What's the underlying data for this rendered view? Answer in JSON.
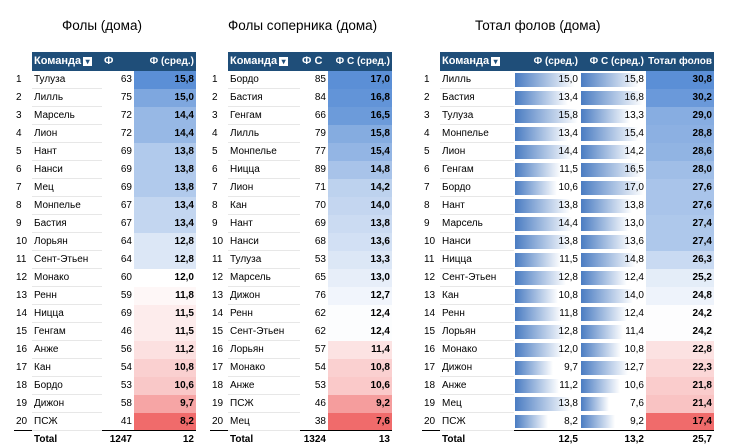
{
  "tables": [
    {
      "title": "Фолы (дома)",
      "headers": [
        "Команда",
        "Ф",
        "Ф (сред.)"
      ],
      "rows": [
        [
          "1",
          "Тулуза",
          "63",
          "15,8"
        ],
        [
          "2",
          "Лилль",
          "75",
          "15,0"
        ],
        [
          "3",
          "Марсель",
          "72",
          "14,4"
        ],
        [
          "4",
          "Лион",
          "72",
          "14,4"
        ],
        [
          "5",
          "Нант",
          "69",
          "13,8"
        ],
        [
          "6",
          "Нанси",
          "69",
          "13,8"
        ],
        [
          "7",
          "Мец",
          "69",
          "13,8"
        ],
        [
          "8",
          "Монпелье",
          "67",
          "13,4"
        ],
        [
          "9",
          "Бастия",
          "67",
          "13,4"
        ],
        [
          "10",
          "Лорьян",
          "64",
          "12,8"
        ],
        [
          "11",
          "Сент-Этьен",
          "64",
          "12,8"
        ],
        [
          "12",
          "Монако",
          "60",
          "12,0"
        ],
        [
          "13",
          "Ренн",
          "59",
          "11,8"
        ],
        [
          "14",
          "Ницца",
          "69",
          "11,5"
        ],
        [
          "15",
          "Генгам",
          "46",
          "11,5"
        ],
        [
          "16",
          "Анже",
          "56",
          "11,2"
        ],
        [
          "17",
          "Кан",
          "54",
          "10,8"
        ],
        [
          "18",
          "Бордо",
          "53",
          "10,6"
        ],
        [
          "19",
          "Дижон",
          "58",
          "9,7"
        ],
        [
          "20",
          "ПСЖ",
          "41",
          "8,2"
        ]
      ],
      "total": [
        "Total",
        "1247",
        "12"
      ],
      "heat_values": [
        15.8,
        15.0,
        14.4,
        14.4,
        13.8,
        13.8,
        13.8,
        13.4,
        13.4,
        12.8,
        12.8,
        12.0,
        11.8,
        11.5,
        11.5,
        11.2,
        10.8,
        10.6,
        9.7,
        8.2
      ]
    },
    {
      "title": "Фолы соперника (дома)",
      "headers": [
        "Команда",
        "Ф С",
        "Ф С (сред.)"
      ],
      "rows": [
        [
          "1",
          "Бордо",
          "85",
          "17,0"
        ],
        [
          "2",
          "Бастия",
          "84",
          "16,8"
        ],
        [
          "3",
          "Генгам",
          "66",
          "16,5"
        ],
        [
          "4",
          "Лилль",
          "79",
          "15,8"
        ],
        [
          "5",
          "Монпелье",
          "77",
          "15,4"
        ],
        [
          "6",
          "Ницца",
          "89",
          "14,8"
        ],
        [
          "7",
          "Лион",
          "71",
          "14,2"
        ],
        [
          "8",
          "Кан",
          "70",
          "14,0"
        ],
        [
          "9",
          "Нант",
          "69",
          "13,8"
        ],
        [
          "10",
          "Нанси",
          "68",
          "13,6"
        ],
        [
          "11",
          "Тулуза",
          "53",
          "13,3"
        ],
        [
          "12",
          "Марсель",
          "65",
          "13,0"
        ],
        [
          "13",
          "Дижон",
          "76",
          "12,7"
        ],
        [
          "14",
          "Ренн",
          "62",
          "12,4"
        ],
        [
          "15",
          "Сент-Этьен",
          "62",
          "12,4"
        ],
        [
          "16",
          "Лорьян",
          "57",
          "11,4"
        ],
        [
          "17",
          "Монако",
          "54",
          "10,8"
        ],
        [
          "18",
          "Анже",
          "53",
          "10,6"
        ],
        [
          "19",
          "ПСЖ",
          "46",
          "9,2"
        ],
        [
          "20",
          "Мец",
          "38",
          "7,6"
        ]
      ],
      "total": [
        "Total",
        "1324",
        "13"
      ],
      "heat_values": [
        17.0,
        16.8,
        16.5,
        15.8,
        15.4,
        14.8,
        14.2,
        14.0,
        13.8,
        13.6,
        13.3,
        13.0,
        12.7,
        12.4,
        12.4,
        11.4,
        10.8,
        10.6,
        9.2,
        7.6
      ]
    },
    {
      "title": "Тотал фолов (дома)",
      "headers": [
        "Команда",
        "Ф (сред.)",
        "Ф С (сред.)",
        "Тотал фолов"
      ],
      "rows": [
        [
          "1",
          "Лилль",
          "15,0",
          "15,8",
          "30,8"
        ],
        [
          "2",
          "Бастия",
          "13,4",
          "16,8",
          "30,2"
        ],
        [
          "3",
          "Тулуза",
          "15,8",
          "13,3",
          "29,0"
        ],
        [
          "4",
          "Монпелье",
          "13,4",
          "15,4",
          "28,8"
        ],
        [
          "5",
          "Лион",
          "14,4",
          "14,2",
          "28,6"
        ],
        [
          "6",
          "Генгам",
          "11,5",
          "16,5",
          "28,0"
        ],
        [
          "7",
          "Бордо",
          "10,6",
          "17,0",
          "27,6"
        ],
        [
          "8",
          "Нант",
          "13,8",
          "13,8",
          "27,6"
        ],
        [
          "9",
          "Марсель",
          "14,4",
          "13,0",
          "27,4"
        ],
        [
          "10",
          "Нанси",
          "13,8",
          "13,6",
          "27,4"
        ],
        [
          "11",
          "Ницца",
          "11,5",
          "14,8",
          "26,3"
        ],
        [
          "12",
          "Сент-Этьен",
          "12,8",
          "12,4",
          "25,2"
        ],
        [
          "13",
          "Кан",
          "10,8",
          "14,0",
          "24,8"
        ],
        [
          "14",
          "Ренн",
          "11,8",
          "12,4",
          "24,2"
        ],
        [
          "15",
          "Лорьян",
          "12,8",
          "11,4",
          "24,2"
        ],
        [
          "16",
          "Монако",
          "12,0",
          "10,8",
          "22,8"
        ],
        [
          "17",
          "Дижон",
          "9,7",
          "12,7",
          "22,3"
        ],
        [
          "18",
          "Анже",
          "11,2",
          "10,6",
          "21,8"
        ],
        [
          "19",
          "Мец",
          "13,8",
          "7,6",
          "21,4"
        ],
        [
          "20",
          "ПСЖ",
          "8,2",
          "9,2",
          "17,4"
        ]
      ],
      "total": [
        "Total",
        "12,5",
        "13,2",
        "25,7"
      ],
      "bar_values_a": [
        15.0,
        13.4,
        15.8,
        13.4,
        14.4,
        11.5,
        10.6,
        13.8,
        14.4,
        13.8,
        11.5,
        12.8,
        10.8,
        11.8,
        12.8,
        12.0,
        9.7,
        11.2,
        13.8,
        8.2
      ],
      "bar_values_b": [
        15.8,
        16.8,
        13.3,
        15.4,
        14.2,
        16.5,
        17.0,
        13.8,
        13.0,
        13.6,
        14.8,
        12.4,
        14.0,
        12.4,
        11.4,
        10.8,
        12.7,
        10.6,
        7.6,
        9.2
      ],
      "heat_values": [
        30.8,
        30.2,
        29.0,
        28.8,
        28.6,
        28.0,
        27.6,
        27.6,
        27.4,
        27.4,
        26.3,
        25.2,
        24.8,
        24.2,
        24.2,
        22.8,
        22.3,
        21.8,
        21.4,
        17.4
      ]
    }
  ],
  "colors": {
    "header": "#1f4e79",
    "high": "#5b8fd6",
    "low": "#f06b6b",
    "bar": "#4a7cc2"
  }
}
